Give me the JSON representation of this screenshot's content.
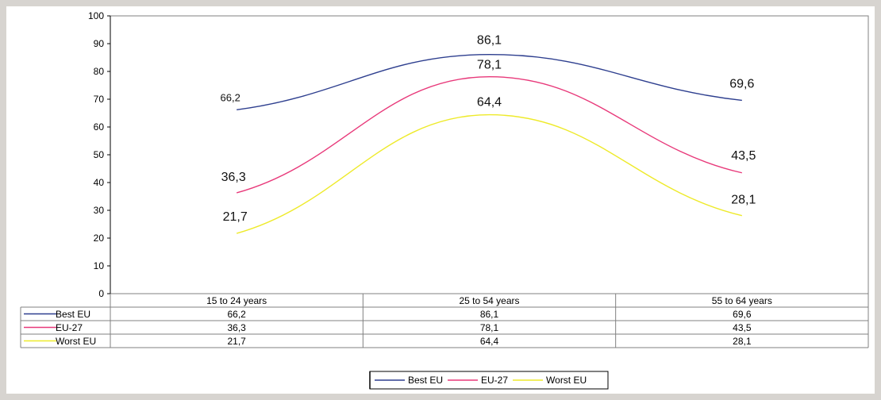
{
  "chart_data": {
    "type": "line",
    "categories": [
      "15 to 24 years",
      "25 to 54 years",
      "55 to 64 years"
    ],
    "series": [
      {
        "name": "Best EU",
        "values": [
          66.2,
          86.1,
          69.6
        ],
        "labels": [
          "66,2",
          "86,1",
          "69,6"
        ],
        "color": "#2e3f8f"
      },
      {
        "name": "EU-27",
        "values": [
          36.3,
          78.1,
          43.5
        ],
        "labels": [
          "36,3",
          "78,1",
          "43,5"
        ],
        "color": "#e8397a"
      },
      {
        "name": "Worst EU",
        "values": [
          21.7,
          64.4,
          28.1
        ],
        "labels": [
          "21,7",
          "64,4",
          "28,1"
        ],
        "color": "#eeea2a"
      }
    ],
    "yticks": [
      "0",
      "10",
      "20",
      "30",
      "40",
      "50",
      "60",
      "70",
      "80",
      "90",
      "100"
    ],
    "ylim": [
      0,
      100
    ],
    "smooth": true,
    "data_table": true,
    "legend": "bottom",
    "grid": false
  }
}
